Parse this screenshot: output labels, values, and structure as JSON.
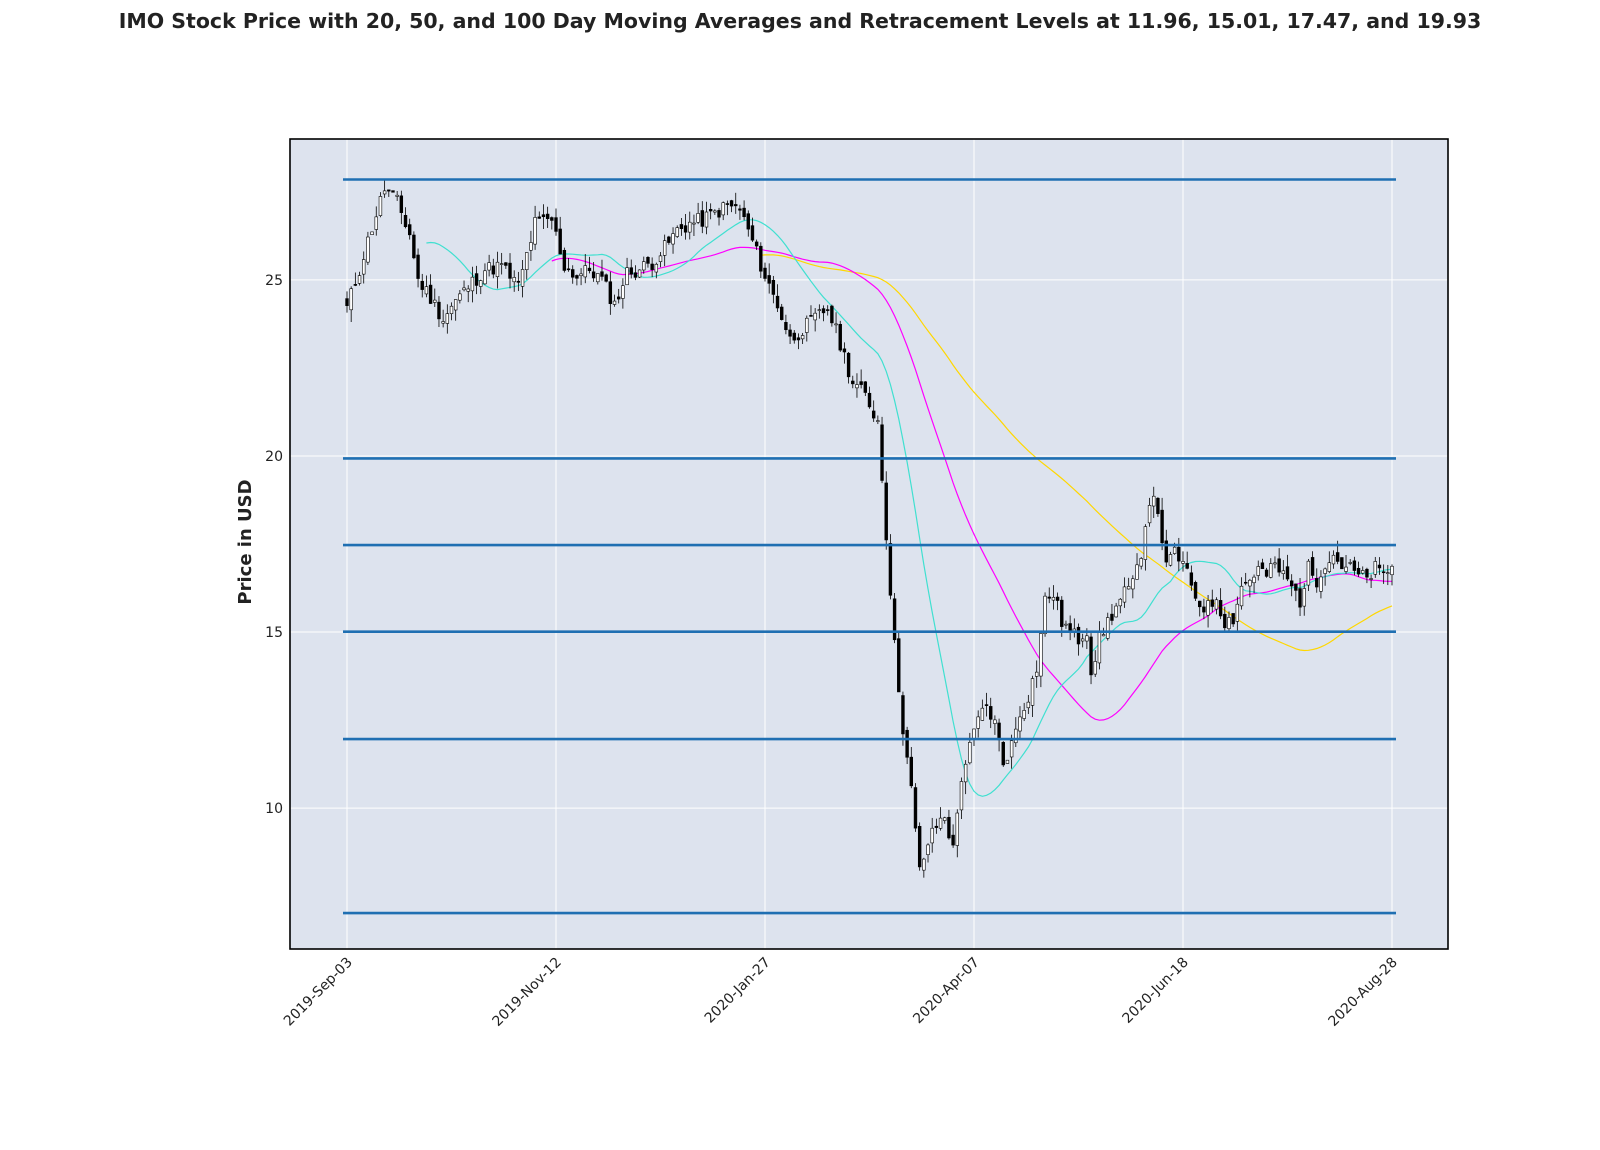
{
  "chart_data": {
    "type": "candlestick",
    "title": "IMO Stock Price with 20, 50, and 100 Day Moving Averages and Retracement Levels at 11.96, 15.01, 17.47, and 19.93",
    "ylabel": "Price in USD",
    "xlabel": "",
    "x_tick_labels": [
      "2019-Sep-03",
      "2019-Nov-12",
      "2020-Jan-27",
      "2020-Apr-07",
      "2020-Jun-18",
      "2020-Aug-28"
    ],
    "x_tick_index": [
      0,
      50,
      100,
      150,
      200,
      250
    ],
    "ylim": [
      6.0,
      29.0
    ],
    "y_ticks": [
      10,
      15,
      20,
      25
    ],
    "grid": true,
    "colors": {
      "plot_bg": "#dde3ee",
      "grid": "#ffffff",
      "frame": "#000000",
      "retracement": "#1f6fb2",
      "candle_up": "#ffffff",
      "candle_down": "#000000",
      "ma20": "#40e0d0",
      "ma50": "#ff00ff",
      "ma100": "#ffd700"
    },
    "retracement_levels": [
      27.85,
      19.93,
      17.47,
      15.01,
      11.96,
      7.02
    ],
    "close_anchors": [
      [
        0,
        24.2
      ],
      [
        3,
        25.3
      ],
      [
        6,
        26.5
      ],
      [
        9,
        27.6
      ],
      [
        12,
        27.2
      ],
      [
        15,
        26.3
      ],
      [
        17,
        25.0
      ],
      [
        20,
        24.5
      ],
      [
        23,
        23.9
      ],
      [
        26,
        24.4
      ],
      [
        29,
        24.8
      ],
      [
        33,
        25.3
      ],
      [
        37,
        25.4
      ],
      [
        41,
        24.8
      ],
      [
        45,
        26.6
      ],
      [
        49,
        26.7
      ],
      [
        52,
        25.4
      ],
      [
        55,
        25.1
      ],
      [
        58,
        25.3
      ],
      [
        61,
        25.0
      ],
      [
        64,
        24.3
      ],
      [
        67,
        25.2
      ],
      [
        70,
        25.3
      ],
      [
        73,
        25.5
      ],
      [
        76,
        25.9
      ],
      [
        79,
        26.4
      ],
      [
        82,
        26.6
      ],
      [
        85,
        26.7
      ],
      [
        88,
        26.9
      ],
      [
        91,
        27.1
      ],
      [
        94,
        27.0
      ],
      [
        97,
        26.1
      ],
      [
        100,
        25.1
      ],
      [
        103,
        24.3
      ],
      [
        106,
        23.3
      ],
      [
        109,
        23.6
      ],
      [
        112,
        23.9
      ],
      [
        115,
        24.2
      ],
      [
        118,
        23.2
      ],
      [
        121,
        22.1
      ],
      [
        124,
        21.7
      ],
      [
        127,
        21.0
      ],
      [
        129,
        17.8
      ],
      [
        131,
        14.6
      ],
      [
        133,
        12.3
      ],
      [
        135,
        10.5
      ],
      [
        137,
        8.2
      ],
      [
        139,
        9.0
      ],
      [
        141,
        9.5
      ],
      [
        143,
        9.8
      ],
      [
        145,
        8.8
      ],
      [
        147,
        10.9
      ],
      [
        149,
        11.7
      ],
      [
        151,
        12.5
      ],
      [
        153,
        12.9
      ],
      [
        155,
        12.4
      ],
      [
        157,
        11.3
      ],
      [
        159,
        11.8
      ],
      [
        161,
        12.7
      ],
      [
        163,
        13.2
      ],
      [
        165,
        14.0
      ],
      [
        167,
        15.9
      ],
      [
        169,
        16.1
      ],
      [
        171,
        15.3
      ],
      [
        173,
        15.0
      ],
      [
        175,
        14.8
      ],
      [
        177,
        15.1
      ],
      [
        178,
        13.9
      ],
      [
        180,
        14.8
      ],
      [
        182,
        15.3
      ],
      [
        184,
        15.7
      ],
      [
        186,
        16.1
      ],
      [
        188,
        16.3
      ],
      [
        190,
        17.3
      ],
      [
        192,
        18.8
      ],
      [
        194,
        18.5
      ],
      [
        196,
        16.8
      ],
      [
        198,
        17.3
      ],
      [
        200,
        16.9
      ],
      [
        202,
        16.3
      ],
      [
        204,
        15.8
      ],
      [
        206,
        15.7
      ],
      [
        208,
        16.0
      ],
      [
        210,
        15.3
      ],
      [
        212,
        15.4
      ],
      [
        214,
        16.3
      ],
      [
        216,
        16.5
      ],
      [
        218,
        16.8
      ],
      [
        220,
        16.6
      ],
      [
        222,
        16.9
      ],
      [
        224,
        16.6
      ],
      [
        226,
        16.3
      ],
      [
        228,
        15.9
      ],
      [
        230,
        16.8
      ],
      [
        232,
        16.5
      ],
      [
        234,
        17.0
      ],
      [
        236,
        17.2
      ],
      [
        238,
        16.9
      ],
      [
        240,
        16.8
      ],
      [
        242,
        16.6
      ],
      [
        244,
        16.5
      ],
      [
        246,
        16.8
      ],
      [
        248,
        16.6
      ],
      [
        250,
        16.9
      ]
    ]
  }
}
